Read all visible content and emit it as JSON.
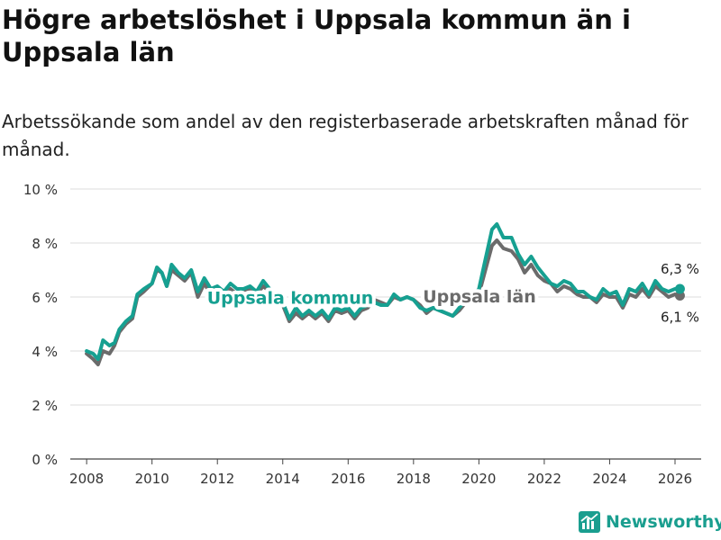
{
  "title": "Högre arbetslöshet i Uppsala kommun än i Uppsala län",
  "subtitle": "Arbetssökande som andel av den registerbaserade arbetskraften månad för månad.",
  "brand": {
    "name": "Newsworthy",
    "icon": "bar-chart-logo-icon",
    "color": "#1a9e8f"
  },
  "chart_data": {
    "type": "line",
    "title": "Högre arbetslöshet i Uppsala kommun än i Uppsala län",
    "xlabel": "",
    "ylabel": "",
    "xlim": [
      2007.5,
      2026.8
    ],
    "ylim": [
      0,
      10
    ],
    "yticks": [
      0,
      2,
      4,
      6,
      8,
      10
    ],
    "ytick_labels": [
      "0 %",
      "2 %",
      "4 %",
      "6 %",
      "8 %",
      "10 %"
    ],
    "xticks": [
      2008,
      2010,
      2012,
      2014,
      2016,
      2018,
      2020,
      2022,
      2024,
      2026
    ],
    "xtick_labels": [
      "2008",
      "2010",
      "2012",
      "2014",
      "2016",
      "2018",
      "2020",
      "2022",
      "2024",
      "2026"
    ],
    "grid": true,
    "series": [
      {
        "name": "Uppsala län",
        "color": "#6b6b6b",
        "label": "Uppsala län",
        "end_label": "6,1 %",
        "points": [
          [
            2008.0,
            3.9
          ],
          [
            2008.2,
            3.7
          ],
          [
            2008.35,
            3.5
          ],
          [
            2008.5,
            4.0
          ],
          [
            2008.7,
            3.9
          ],
          [
            2008.85,
            4.2
          ],
          [
            2009.0,
            4.7
          ],
          [
            2009.2,
            5.0
          ],
          [
            2009.4,
            5.2
          ],
          [
            2009.55,
            6.0
          ],
          [
            2009.75,
            6.2
          ],
          [
            2010.0,
            6.5
          ],
          [
            2010.15,
            7.0
          ],
          [
            2010.3,
            6.9
          ],
          [
            2010.45,
            6.4
          ],
          [
            2010.6,
            7.0
          ],
          [
            2010.8,
            6.8
          ],
          [
            2011.0,
            6.6
          ],
          [
            2011.2,
            6.9
          ],
          [
            2011.4,
            6.0
          ],
          [
            2011.6,
            6.5
          ],
          [
            2011.8,
            6.1
          ],
          [
            2012.0,
            6.2
          ],
          [
            2012.2,
            6.0
          ],
          [
            2012.4,
            6.3
          ],
          [
            2012.6,
            6.1
          ],
          [
            2012.8,
            6.2
          ],
          [
            2013.0,
            6.3
          ],
          [
            2013.2,
            6.1
          ],
          [
            2013.4,
            6.4
          ],
          [
            2013.6,
            6.2
          ],
          [
            2013.8,
            6.0
          ],
          [
            2014.0,
            5.7
          ],
          [
            2014.2,
            5.1
          ],
          [
            2014.4,
            5.4
          ],
          [
            2014.6,
            5.2
          ],
          [
            2014.8,
            5.4
          ],
          [
            2015.0,
            5.2
          ],
          [
            2015.2,
            5.4
          ],
          [
            2015.4,
            5.1
          ],
          [
            2015.6,
            5.5
          ],
          [
            2015.8,
            5.4
          ],
          [
            2016.0,
            5.5
          ],
          [
            2016.2,
            5.2
          ],
          [
            2016.4,
            5.5
          ],
          [
            2016.6,
            5.6
          ],
          [
            2016.8,
            5.9
          ],
          [
            2017.0,
            5.8
          ],
          [
            2017.2,
            5.7
          ],
          [
            2017.4,
            6.0
          ],
          [
            2017.6,
            5.9
          ],
          [
            2017.8,
            6.0
          ],
          [
            2018.0,
            5.9
          ],
          [
            2018.2,
            5.7
          ],
          [
            2018.4,
            5.4
          ],
          [
            2018.6,
            5.6
          ],
          [
            2018.8,
            5.5
          ],
          [
            2019.0,
            5.4
          ],
          [
            2019.2,
            5.3
          ],
          [
            2019.4,
            5.5
          ],
          [
            2019.6,
            5.8
          ],
          [
            2019.8,
            5.9
          ],
          [
            2020.0,
            6.1
          ],
          [
            2020.2,
            7.0
          ],
          [
            2020.4,
            7.9
          ],
          [
            2020.55,
            8.1
          ],
          [
            2020.75,
            7.8
          ],
          [
            2021.0,
            7.7
          ],
          [
            2021.2,
            7.4
          ],
          [
            2021.4,
            6.9
          ],
          [
            2021.6,
            7.2
          ],
          [
            2021.8,
            6.8
          ],
          [
            2022.0,
            6.6
          ],
          [
            2022.2,
            6.5
          ],
          [
            2022.4,
            6.2
          ],
          [
            2022.6,
            6.4
          ],
          [
            2022.8,
            6.3
          ],
          [
            2023.0,
            6.1
          ],
          [
            2023.2,
            6.0
          ],
          [
            2023.4,
            6.0
          ],
          [
            2023.6,
            5.8
          ],
          [
            2023.8,
            6.1
          ],
          [
            2024.0,
            6.0
          ],
          [
            2024.2,
            6.0
          ],
          [
            2024.4,
            5.6
          ],
          [
            2024.6,
            6.1
          ],
          [
            2024.8,
            6.0
          ],
          [
            2025.0,
            6.3
          ],
          [
            2025.2,
            6.0
          ],
          [
            2025.4,
            6.4
          ],
          [
            2025.6,
            6.2
          ],
          [
            2025.8,
            6.0
          ],
          [
            2026.0,
            6.1
          ],
          [
            2026.15,
            6.05
          ]
        ]
      },
      {
        "name": "Uppsala kommun",
        "color": "#16a091",
        "label": "Uppsala kommun",
        "end_label": "6,3 %",
        "points": [
          [
            2008.0,
            4.0
          ],
          [
            2008.2,
            3.9
          ],
          [
            2008.35,
            3.7
          ],
          [
            2008.5,
            4.4
          ],
          [
            2008.7,
            4.2
          ],
          [
            2008.85,
            4.3
          ],
          [
            2009.0,
            4.8
          ],
          [
            2009.2,
            5.1
          ],
          [
            2009.4,
            5.3
          ],
          [
            2009.55,
            6.1
          ],
          [
            2009.75,
            6.3
          ],
          [
            2010.0,
            6.5
          ],
          [
            2010.15,
            7.1
          ],
          [
            2010.3,
            6.9
          ],
          [
            2010.45,
            6.4
          ],
          [
            2010.6,
            7.2
          ],
          [
            2010.8,
            6.9
          ],
          [
            2011.0,
            6.7
          ],
          [
            2011.2,
            7.0
          ],
          [
            2011.4,
            6.2
          ],
          [
            2011.6,
            6.7
          ],
          [
            2011.8,
            6.3
          ],
          [
            2012.0,
            6.4
          ],
          [
            2012.2,
            6.2
          ],
          [
            2012.4,
            6.5
          ],
          [
            2012.6,
            6.3
          ],
          [
            2012.8,
            6.3
          ],
          [
            2013.0,
            6.4
          ],
          [
            2013.2,
            6.2
          ],
          [
            2013.4,
            6.6
          ],
          [
            2013.6,
            6.3
          ],
          [
            2013.8,
            6.1
          ],
          [
            2014.0,
            5.8
          ],
          [
            2014.2,
            5.2
          ],
          [
            2014.4,
            5.6
          ],
          [
            2014.6,
            5.3
          ],
          [
            2014.8,
            5.5
          ],
          [
            2015.0,
            5.3
          ],
          [
            2015.2,
            5.5
          ],
          [
            2015.4,
            5.2
          ],
          [
            2015.6,
            5.6
          ],
          [
            2015.8,
            5.5
          ],
          [
            2016.0,
            5.6
          ],
          [
            2016.2,
            5.3
          ],
          [
            2016.4,
            5.6
          ],
          [
            2016.6,
            5.7
          ],
          [
            2016.8,
            5.8
          ],
          [
            2017.0,
            5.7
          ],
          [
            2017.2,
            5.7
          ],
          [
            2017.4,
            6.1
          ],
          [
            2017.6,
            5.9
          ],
          [
            2017.8,
            6.0
          ],
          [
            2018.0,
            5.9
          ],
          [
            2018.2,
            5.6
          ],
          [
            2018.4,
            5.5
          ],
          [
            2018.6,
            5.6
          ],
          [
            2018.8,
            5.5
          ],
          [
            2019.0,
            5.4
          ],
          [
            2019.2,
            5.3
          ],
          [
            2019.4,
            5.6
          ],
          [
            2019.6,
            5.9
          ],
          [
            2019.8,
            6.0
          ],
          [
            2020.0,
            6.3
          ],
          [
            2020.2,
            7.4
          ],
          [
            2020.4,
            8.5
          ],
          [
            2020.55,
            8.7
          ],
          [
            2020.75,
            8.2
          ],
          [
            2021.0,
            8.2
          ],
          [
            2021.2,
            7.6
          ],
          [
            2021.4,
            7.2
          ],
          [
            2021.6,
            7.5
          ],
          [
            2021.8,
            7.1
          ],
          [
            2022.0,
            6.8
          ],
          [
            2022.2,
            6.5
          ],
          [
            2022.4,
            6.4
          ],
          [
            2022.6,
            6.6
          ],
          [
            2022.8,
            6.5
          ],
          [
            2023.0,
            6.2
          ],
          [
            2023.2,
            6.2
          ],
          [
            2023.4,
            6.0
          ],
          [
            2023.6,
            5.9
          ],
          [
            2023.8,
            6.3
          ],
          [
            2024.0,
            6.1
          ],
          [
            2024.2,
            6.2
          ],
          [
            2024.4,
            5.7
          ],
          [
            2024.6,
            6.3
          ],
          [
            2024.8,
            6.2
          ],
          [
            2025.0,
            6.5
          ],
          [
            2025.2,
            6.1
          ],
          [
            2025.4,
            6.6
          ],
          [
            2025.6,
            6.3
          ],
          [
            2025.8,
            6.2
          ],
          [
            2026.0,
            6.3
          ],
          [
            2026.15,
            6.3
          ]
        ]
      }
    ]
  }
}
